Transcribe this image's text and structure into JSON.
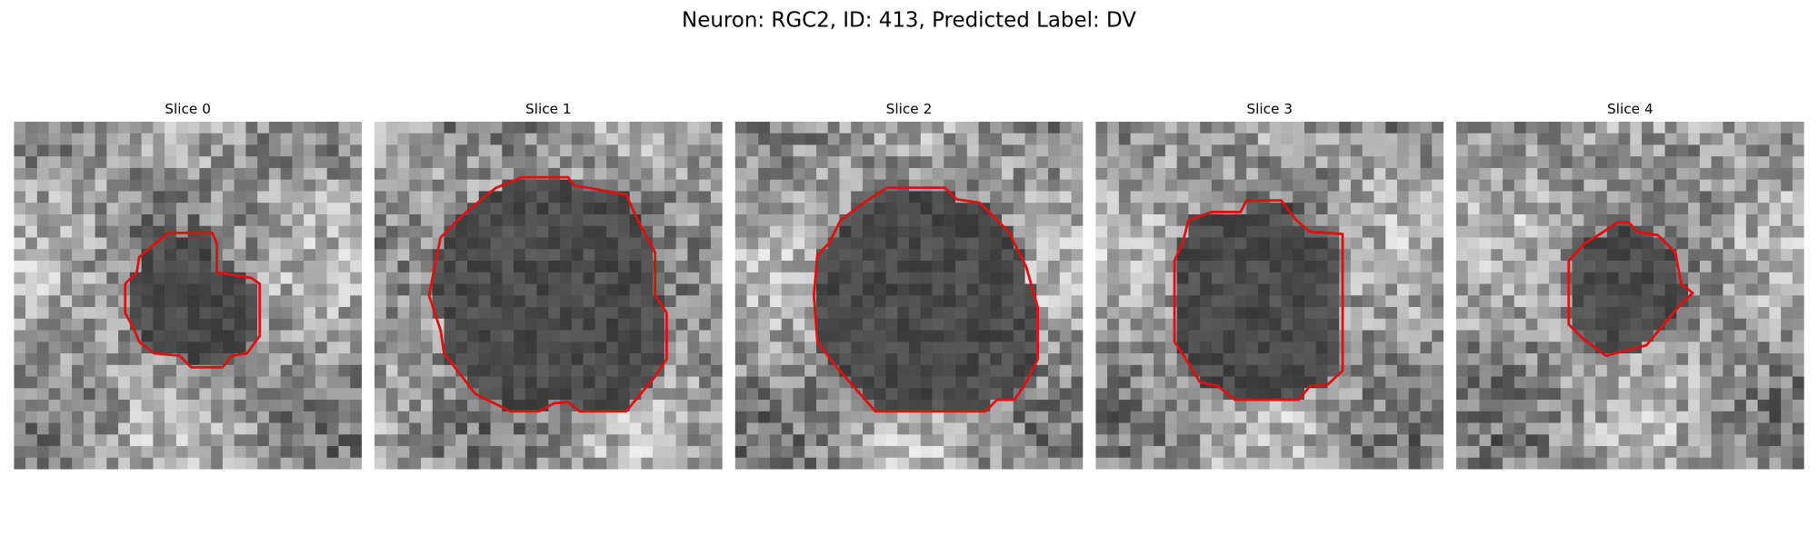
{
  "title": "Neuron: RGC2, ID: 413, Predicted Label: DV",
  "panels": [
    {
      "title": "Slice 0"
    },
    {
      "title": "Slice 1"
    },
    {
      "title": "Slice 2"
    },
    {
      "title": "Slice 3"
    },
    {
      "title": "Slice 4"
    }
  ]
}
